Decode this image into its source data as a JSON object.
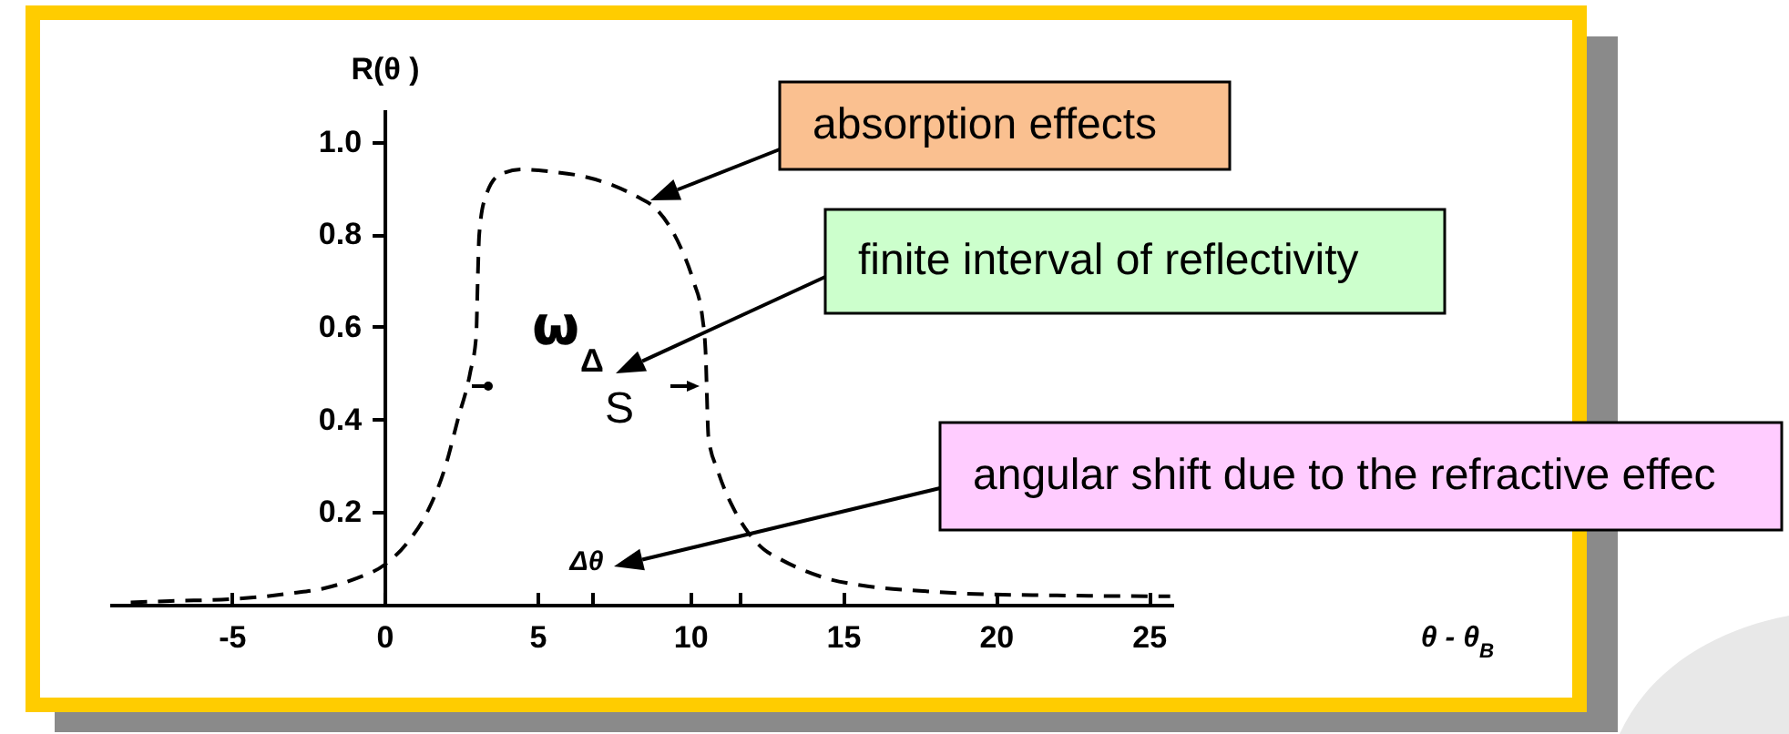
{
  "chart_data": {
    "type": "line",
    "ylabel": "R(θ )",
    "x": [
      -8.3,
      -7,
      -5,
      -3,
      -2,
      -1,
      0,
      0.7,
      1.4,
      2,
      2.4,
      2.8,
      3.0,
      3.05,
      3.1,
      3.3,
      3.8,
      4.5,
      5.5,
      6.5,
      7.5,
      8.3,
      8.8,
      9.3,
      9.7,
      10.1,
      10.4,
      10.5,
      10.6,
      10.9,
      11.4,
      11.8,
      12.4,
      12.9,
      14.3,
      15.8,
      17.5,
      19,
      22,
      25.7
    ],
    "series": [
      {
        "color": "#000000",
        "values": [
          0.005,
          0.008,
          0.012,
          0.025,
          0.035,
          0.055,
          0.086,
          0.13,
          0.2,
          0.3,
          0.4,
          0.5,
          0.58,
          0.7,
          0.8,
          0.88,
          0.93,
          0.94,
          0.935,
          0.925,
          0.905,
          0.88,
          0.86,
          0.82,
          0.77,
          0.7,
          0.62,
          0.55,
          0.36,
          0.29,
          0.21,
          0.165,
          0.12,
          0.1,
          0.06,
          0.04,
          0.03,
          0.024,
          0.02,
          0.018
        ]
      }
    ],
    "xlim": [
      -9,
      25.8
    ],
    "ylim": [
      0,
      1.07
    ],
    "xticks": [
      -5,
      0,
      5,
      {
        "value": 6.8,
        "label": null
      },
      10,
      {
        "value": 11.6,
        "label": null
      },
      15,
      20,
      25
    ],
    "yticks": [
      0.2,
      0.4,
      0.6,
      0.8,
      {
        "value": 1,
        "label": "1.0"
      }
    ],
    "grid": false,
    "legend": false,
    "marker": "none",
    "line_style": "dashed",
    "annotations": [
      "absorption effects",
      "finite interval of reflectivity",
      "angular shift due to the refractive effec",
      "Δθ",
      "ω",
      "Δ",
      "S",
      "θ - θ$_{B}$"
    ]
  }
}
